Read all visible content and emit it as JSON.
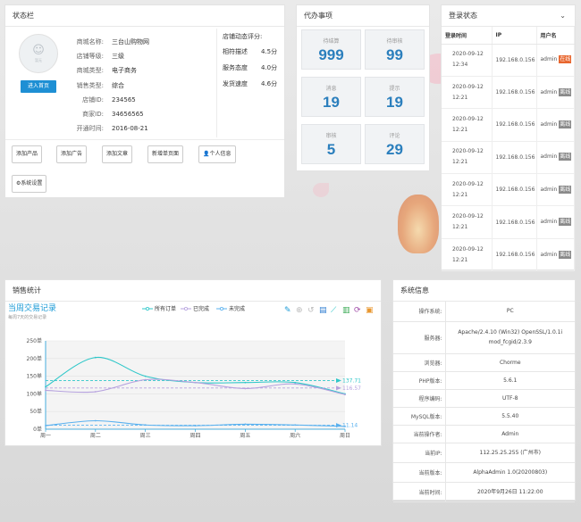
{
  "status_panel": {
    "title": "状态栏",
    "avatar_text": "暂无",
    "enter_button": "进入首页",
    "info": [
      {
        "label": "商城名称:",
        "value": "三台山购物网"
      },
      {
        "label": "店铺等级:",
        "value": "三级"
      },
      {
        "label": "商城类型:",
        "value": "电子商务"
      },
      {
        "label": "销售类型:",
        "value": "综合"
      },
      {
        "label": "店铺ID:",
        "value": "234565"
      },
      {
        "label": "商家ID:",
        "value": "34656565"
      },
      {
        "label": "开通时间:",
        "value": "2016-08-21"
      }
    ],
    "rating_title": "店铺动态评分:",
    "ratings": [
      {
        "label": "相符描述",
        "value": "4.5分"
      },
      {
        "label": "服务态度",
        "value": "4.0分"
      },
      {
        "label": "发货速度",
        "value": "4.6分"
      }
    ],
    "quick_buttons": [
      "添加产品",
      "添加广告",
      "添加文章",
      "新增单页面",
      "个人信息",
      "系统设置"
    ]
  },
  "todo_panel": {
    "title": "代办事项",
    "items": [
      {
        "label": "待结算",
        "value": "999"
      },
      {
        "label": "待审核",
        "value": "99"
      },
      {
        "label": "消息",
        "value": "19"
      },
      {
        "label": "提示",
        "value": "19"
      },
      {
        "label": "审核",
        "value": "5"
      },
      {
        "label": "评论",
        "value": "29"
      }
    ]
  },
  "login_panel": {
    "title": "登录状态",
    "columns": [
      "登录时间",
      "IP",
      "用户名"
    ],
    "rows": [
      {
        "date": "2020-09-12",
        "time": "12:34",
        "ip": "192.168.0.156",
        "user": "admin",
        "status": "在线",
        "online": true
      },
      {
        "date": "2020-09-12",
        "time": "12:21",
        "ip": "192.168.0.156",
        "user": "admin",
        "status": "离线",
        "online": false
      },
      {
        "date": "2020-09-12",
        "time": "12:21",
        "ip": "192.168.0.156",
        "user": "admin",
        "status": "离线",
        "online": false
      },
      {
        "date": "2020-09-12",
        "time": "12:21",
        "ip": "192.168.0.156",
        "user": "admin",
        "status": "离线",
        "online": false
      },
      {
        "date": "2020-09-12",
        "time": "12:21",
        "ip": "192.168.0.156",
        "user": "admin",
        "status": "离线",
        "online": false
      },
      {
        "date": "2020-09-12",
        "time": "12:21",
        "ip": "192.168.0.156",
        "user": "admin",
        "status": "离线",
        "online": false
      },
      {
        "date": "2020-09-12",
        "time": "12:21",
        "ip": "192.168.0.156",
        "user": "admin",
        "status": "离线",
        "online": false
      }
    ],
    "colors": {
      "online": "#e8662e",
      "offline": "#8a8a8a"
    }
  },
  "sales_panel": {
    "title": "销售统计",
    "toolbox_icons": [
      "mark-icon",
      "zoom-icon",
      "zoom-reset-icon",
      "data-view-icon",
      "line-chart-icon",
      "bar-chart-icon",
      "refresh-icon",
      "save-image-icon"
    ]
  },
  "chart_data": {
    "type": "line",
    "title": "当周交易记录",
    "subtitle": "每周7天的交易记录",
    "categories": [
      "周一",
      "周二",
      "周三",
      "周四",
      "周五",
      "周六",
      "周日"
    ],
    "ylim": [
      0,
      250
    ],
    "yticks": [
      "0单",
      "50单",
      "100单",
      "150单",
      "200单",
      "250单"
    ],
    "legend_position": "top",
    "series": [
      {
        "name": "所有订单",
        "color": "#2ec7c9",
        "values": [
          120,
          203,
          150,
          132,
          132,
          132,
          100
        ],
        "average": 137.71
      },
      {
        "name": "已完成",
        "color": "#b6a2de",
        "values": [
          110,
          106,
          140,
          132,
          115,
          128,
          98
        ],
        "average": 116.57
      },
      {
        "name": "未完成",
        "color": "#5ab1ef",
        "values": [
          10,
          24,
          12,
          10,
          14,
          12,
          8
        ],
        "average": 11.14
      }
    ]
  },
  "sys_panel": {
    "title": "系统信息",
    "rows": [
      {
        "label": "操作系统:",
        "value": "PC"
      },
      {
        "label": "服务器:",
        "value": "Apache/2.4.10 (Win32) OpenSSL/1.0.1i mod_fcgid/2.3.9"
      },
      {
        "label": "浏览器:",
        "value": "Chorme"
      },
      {
        "label": "PHP版本:",
        "value": "5.6.1"
      },
      {
        "label": "程序编码:",
        "value": "UTF-8"
      },
      {
        "label": "MySQL版本:",
        "value": "5.5.40"
      },
      {
        "label": "当前操作者:",
        "value": "Admin"
      },
      {
        "label": "当前IP:",
        "value": "112.25.25.255 (广州市)"
      },
      {
        "label": "当前版本:",
        "value": "AlphaAdmin 1.0(20200803)"
      },
      {
        "label": "当前时间:",
        "value": "2020年9月26日 11:22:00"
      }
    ]
  }
}
